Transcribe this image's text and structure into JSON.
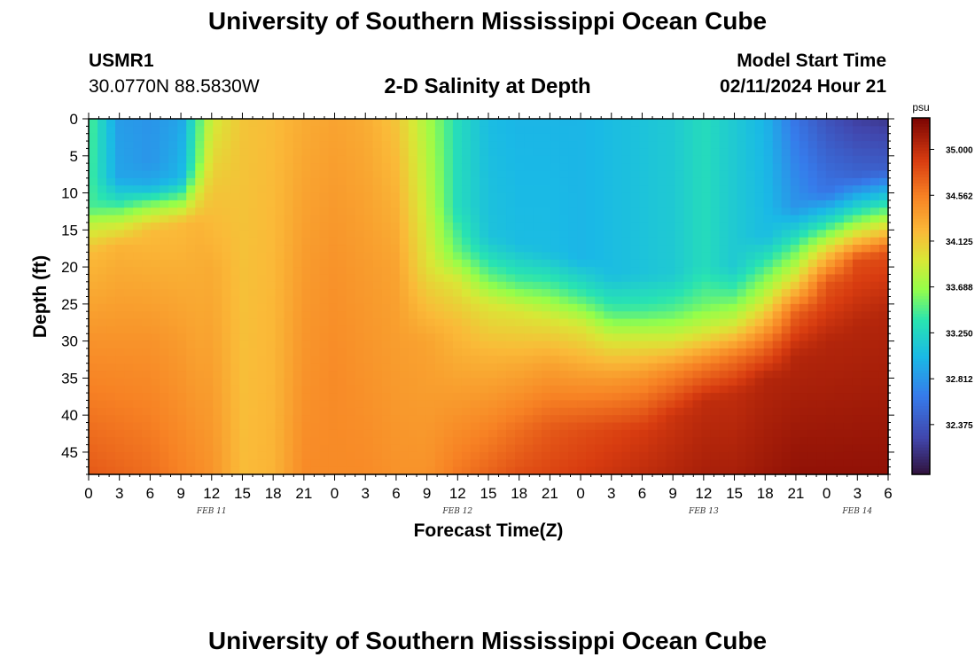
{
  "header": {
    "title": "University of Southern Mississippi Ocean Cube",
    "station_id": "USMR1",
    "station_coords": "30.0770N  88.5830W",
    "subtitle": "2-D Salinity at Depth",
    "model_label": "Model Start Time",
    "model_time": "02/11/2024 Hour 21"
  },
  "footer": {
    "title": "University of Southern Mississippi Ocean Cube"
  },
  "chart_data": {
    "type": "heatmap",
    "title": "2-D Salinity at Depth",
    "xlabel": "Forecast Time(Z)",
    "ylabel": "Depth (ft)",
    "x_tick_labels": [
      "0",
      "3",
      "6",
      "9",
      "12",
      "15",
      "18",
      "21",
      "0",
      "3",
      "6",
      "9",
      "12",
      "15",
      "18",
      "21",
      "0",
      "3",
      "6",
      "9",
      "12",
      "15",
      "18",
      "21",
      "0",
      "3",
      "6"
    ],
    "x_hours_range": [
      0,
      78
    ],
    "date_labels": [
      {
        "label": "FEB 11",
        "hour": 12
      },
      {
        "label": "FEB 12",
        "hour": 36
      },
      {
        "label": "FEB 13",
        "hour": 60
      },
      {
        "label": "FEB 14",
        "hour": 75
      }
    ],
    "y_ticks": [
      0,
      5,
      10,
      15,
      20,
      25,
      30,
      35,
      40,
      45
    ],
    "y_tick_labels": [
      "0",
      "5",
      "10",
      "15",
      "20",
      "25",
      "30",
      "35",
      "40",
      "45"
    ],
    "ylim": [
      0,
      48
    ],
    "colorbar": {
      "unit": "psu",
      "range": [
        31.9,
        35.3
      ],
      "ticks": [
        35.0,
        34.562,
        34.125,
        33.688,
        33.25,
        32.812,
        32.375
      ],
      "tick_labels": [
        "35.000",
        "34.562",
        "34.125",
        "33.688",
        "33.250",
        "32.812",
        "32.375"
      ]
    },
    "salinity_profiles": [
      {
        "hour": 0,
        "depths": [
          0,
          12,
          14,
          18,
          30,
          48
        ],
        "values": [
          33.5,
          33.45,
          33.8,
          34.2,
          34.45,
          34.75
        ]
      },
      {
        "hour": 3,
        "depths": [
          0,
          8,
          11,
          14,
          17,
          30,
          48
        ],
        "values": [
          32.85,
          32.9,
          33.3,
          33.85,
          34.25,
          34.45,
          34.7
        ]
      },
      {
        "hour": 6,
        "depths": [
          0,
          6,
          9,
          12,
          15,
          30,
          48
        ],
        "values": [
          32.8,
          32.8,
          32.95,
          33.7,
          34.2,
          34.45,
          34.65
        ]
      },
      {
        "hour": 9,
        "depths": [
          0,
          8,
          11,
          14,
          30,
          48
        ],
        "values": [
          32.9,
          33.0,
          33.6,
          34.2,
          34.4,
          34.55
        ]
      },
      {
        "hour": 10.5,
        "depths": [
          0,
          6,
          10,
          14,
          30,
          48
        ],
        "values": [
          33.4,
          33.5,
          33.9,
          34.25,
          34.35,
          34.5
        ]
      },
      {
        "hour": 12,
        "depths": [
          0,
          10,
          20,
          48
        ],
        "values": [
          33.9,
          34.15,
          34.3,
          34.45
        ]
      },
      {
        "hour": 15,
        "depths": [
          0,
          48
        ],
        "values": [
          34.15,
          34.2
        ]
      },
      {
        "hour": 18,
        "depths": [
          0,
          48
        ],
        "values": [
          34.2,
          34.25
        ]
      },
      {
        "hour": 21,
        "depths": [
          0,
          20,
          35,
          48
        ],
        "values": [
          34.3,
          34.4,
          34.45,
          34.5
        ]
      },
      {
        "hour": 24,
        "depths": [
          0,
          20,
          35,
          48
        ],
        "values": [
          34.35,
          34.45,
          34.5,
          34.5
        ]
      },
      {
        "hour": 27,
        "depths": [
          0,
          20,
          35,
          48
        ],
        "values": [
          34.3,
          34.4,
          34.45,
          34.5
        ]
      },
      {
        "hour": 30,
        "depths": [
          0,
          10,
          20,
          48
        ],
        "values": [
          34.15,
          34.25,
          34.35,
          34.45
        ]
      },
      {
        "hour": 33,
        "depths": [
          0,
          10,
          20,
          30,
          48
        ],
        "values": [
          33.75,
          33.85,
          34.0,
          34.35,
          34.45
        ]
      },
      {
        "hour": 36,
        "depths": [
          0,
          12,
          18,
          22,
          28,
          40,
          48
        ],
        "values": [
          33.3,
          33.3,
          33.55,
          33.95,
          34.2,
          34.45,
          34.6
        ]
      },
      {
        "hour": 39,
        "depths": [
          0,
          16,
          21,
          25,
          32,
          42,
          48
        ],
        "values": [
          33.05,
          33.1,
          33.5,
          33.95,
          34.25,
          34.55,
          34.7
        ]
      },
      {
        "hour": 42,
        "depths": [
          0,
          17,
          22,
          26,
          33,
          42,
          48
        ],
        "values": [
          33.0,
          33.05,
          33.45,
          33.95,
          34.3,
          34.65,
          34.8
        ]
      },
      {
        "hour": 45,
        "depths": [
          0,
          18,
          23,
          27,
          33,
          42,
          48
        ],
        "values": [
          33.0,
          33.05,
          33.5,
          33.95,
          34.35,
          34.75,
          34.85
        ]
      },
      {
        "hour": 48,
        "depths": [
          0,
          19,
          24,
          28,
          34,
          42,
          48
        ],
        "values": [
          33.0,
          33.0,
          33.45,
          33.95,
          34.35,
          34.8,
          34.9
        ]
      },
      {
        "hour": 51,
        "depths": [
          0,
          21,
          26,
          30,
          35,
          42,
          48
        ],
        "values": [
          33.05,
          33.05,
          33.45,
          33.95,
          34.4,
          34.85,
          34.95
        ]
      },
      {
        "hour": 54,
        "depths": [
          0,
          21,
          26,
          30,
          35,
          42,
          48
        ],
        "values": [
          33.1,
          33.1,
          33.45,
          33.95,
          34.45,
          34.9,
          35.0
        ]
      },
      {
        "hour": 57,
        "depths": [
          0,
          21,
          26,
          30,
          34,
          40,
          48
        ],
        "values": [
          33.15,
          33.15,
          33.5,
          33.95,
          34.5,
          34.95,
          35.05
        ]
      },
      {
        "hour": 60,
        "depths": [
          0,
          20,
          25,
          29,
          33,
          38,
          48
        ],
        "values": [
          33.3,
          33.3,
          33.55,
          33.95,
          34.55,
          35.0,
          35.1
        ]
      },
      {
        "hour": 63,
        "depths": [
          0,
          20,
          24,
          28,
          32,
          37,
          48
        ],
        "values": [
          33.15,
          33.15,
          33.5,
          33.95,
          34.6,
          35.0,
          35.1
        ]
      },
      {
        "hour": 66,
        "depths": [
          0,
          16,
          20,
          25,
          30,
          35,
          48
        ],
        "values": [
          33.0,
          33.05,
          33.45,
          33.95,
          34.6,
          35.05,
          35.15
        ]
      },
      {
        "hour": 69,
        "depths": [
          0,
          12,
          17,
          22,
          26,
          32,
          48
        ],
        "values": [
          32.6,
          32.8,
          33.45,
          34.05,
          34.7,
          35.05,
          35.2
        ]
      },
      {
        "hour": 72,
        "depths": [
          0,
          10,
          15,
          18,
          22,
          30,
          48
        ],
        "values": [
          32.35,
          32.6,
          33.5,
          34.1,
          34.75,
          35.05,
          35.2
        ]
      },
      {
        "hour": 75,
        "depths": [
          0,
          8,
          13,
          16,
          19,
          28,
          48
        ],
        "values": [
          32.2,
          32.5,
          33.45,
          34.1,
          34.8,
          35.05,
          35.2
        ]
      },
      {
        "hour": 78,
        "depths": [
          0,
          7,
          12,
          15,
          18,
          26,
          48
        ],
        "values": [
          32.15,
          32.45,
          33.45,
          34.1,
          34.8,
          35.05,
          35.2
        ]
      }
    ]
  }
}
